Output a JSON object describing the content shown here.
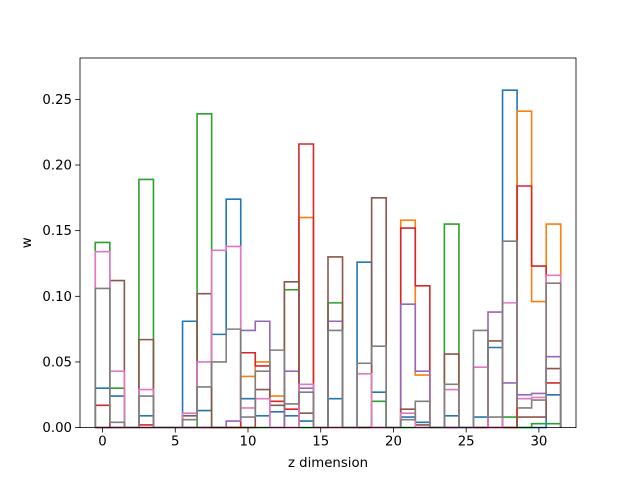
{
  "chart_data": {
    "type": "step",
    "title": "",
    "xlabel": "z dimension",
    "ylabel": "w",
    "xlim": [
      -1.55,
      32.55
    ],
    "ylim": [
      0,
      0.2815
    ],
    "xticks": [
      0,
      5,
      10,
      15,
      20,
      25,
      30
    ],
    "yticks": [
      0.0,
      0.05,
      0.1,
      0.15,
      0.2,
      0.25
    ],
    "xtick_labels": [
      "0",
      "5",
      "10",
      "15",
      "20",
      "25",
      "30"
    ],
    "ytick_labels": [
      "0.00",
      "0.05",
      "0.10",
      "0.15",
      "0.20",
      "0.25"
    ],
    "grid": false,
    "legend": "none",
    "x_centers": [
      0,
      1,
      2,
      3,
      4,
      5,
      6,
      7,
      8,
      9,
      10,
      11,
      12,
      13,
      14,
      15,
      16,
      17,
      18,
      19,
      20,
      21,
      22,
      23,
      24,
      25,
      26,
      27,
      28,
      29,
      30,
      31
    ],
    "series": [
      {
        "color": "#1f77b4",
        "values": [
          0.03,
          0.024,
          0.0,
          0.009,
          0.0,
          0.0,
          0.081,
          0.013,
          0.071,
          0.174,
          0.022,
          0.009,
          0.012,
          0.009,
          0.005,
          0.0,
          0.022,
          0.0,
          0.126,
          0.027,
          0.0,
          0.008,
          0.004,
          0.0,
          0.009,
          0.0,
          0.008,
          0.061,
          0.257,
          0.0,
          0.0,
          0.025
        ]
      },
      {
        "color": "#ff7f0e",
        "values": [
          0.0,
          0.0,
          0.0,
          0.0,
          0.0,
          0.0,
          0.0,
          0.0,
          0.0,
          0.0,
          0.039,
          0.05,
          0.024,
          0.0,
          0.16,
          0.0,
          0.0,
          0.0,
          0.0,
          0.0,
          0.0,
          0.158,
          0.04,
          0.0,
          0.0,
          0.0,
          0.0,
          0.0,
          0.0,
          0.241,
          0.096,
          0.155
        ]
      },
      {
        "color": "#2ca02c",
        "values": [
          0.141,
          0.03,
          0.0,
          0.189,
          0.0,
          0.0,
          0.0,
          0.239,
          0.0,
          0.0,
          0.0,
          0.0,
          0.0,
          0.105,
          0.0,
          0.0,
          0.095,
          0.0,
          0.0,
          0.02,
          0.0,
          0.0,
          0.0,
          0.0,
          0.155,
          0.0,
          0.0,
          0.0,
          0.008,
          0.0,
          0.003,
          0.003
        ]
      },
      {
        "color": "#d62728",
        "values": [
          0.017,
          0.0,
          0.0,
          0.002,
          0.0,
          0.0,
          0.0,
          0.0,
          0.0,
          0.0,
          0.057,
          0.047,
          0.02,
          0.014,
          0.216,
          0.0,
          0.0,
          0.0,
          0.0,
          0.0,
          0.0,
          0.152,
          0.108,
          0.0,
          0.0,
          0.0,
          0.0,
          0.0,
          0.0,
          0.184,
          0.123,
          0.034
        ]
      },
      {
        "color": "#9467bd",
        "values": [
          0.0,
          0.0,
          0.0,
          0.0,
          0.0,
          0.0,
          0.0,
          0.0,
          0.0,
          0.005,
          0.074,
          0.081,
          0.0,
          0.043,
          0.03,
          0.0,
          0.081,
          0.0,
          0.0,
          0.0,
          0.0,
          0.094,
          0.043,
          0.0,
          0.0,
          0.0,
          0.0,
          0.088,
          0.034,
          0.025,
          0.026,
          0.054
        ]
      },
      {
        "color": "#8c564b",
        "values": [
          0.0,
          0.112,
          0.0,
          0.067,
          0.0,
          0.0,
          0.009,
          0.102,
          0.0,
          0.0,
          0.0,
          0.029,
          0.017,
          0.111,
          0.011,
          0.0,
          0.13,
          0.0,
          0.0,
          0.175,
          0.0,
          0.014,
          0.002,
          0.0,
          0.056,
          0.0,
          0.0,
          0.066,
          0.0,
          0.008,
          0.008,
          0.045
        ]
      },
      {
        "color": "#e377c2",
        "values": [
          0.134,
          0.043,
          0.0,
          0.029,
          0.0,
          0.0,
          0.011,
          0.05,
          0.135,
          0.138,
          0.015,
          0.022,
          0.0,
          0.0,
          0.033,
          0.0,
          0.0,
          0.0,
          0.041,
          0.0,
          0.0,
          0.011,
          0.0,
          0.0,
          0.029,
          0.0,
          0.046,
          0.0,
          0.095,
          0.022,
          0.023,
          0.116
        ]
      },
      {
        "color": "#7f7f7f",
        "values": [
          0.106,
          0.004,
          0.0,
          0.024,
          0.0,
          0.0,
          0.006,
          0.031,
          0.05,
          0.075,
          0.008,
          0.043,
          0.059,
          0.018,
          0.027,
          0.0,
          0.074,
          0.0,
          0.049,
          0.062,
          0.0,
          0.006,
          0.02,
          0.0,
          0.033,
          0.0,
          0.074,
          0.008,
          0.142,
          0.015,
          0.021,
          0.11
        ]
      }
    ]
  }
}
